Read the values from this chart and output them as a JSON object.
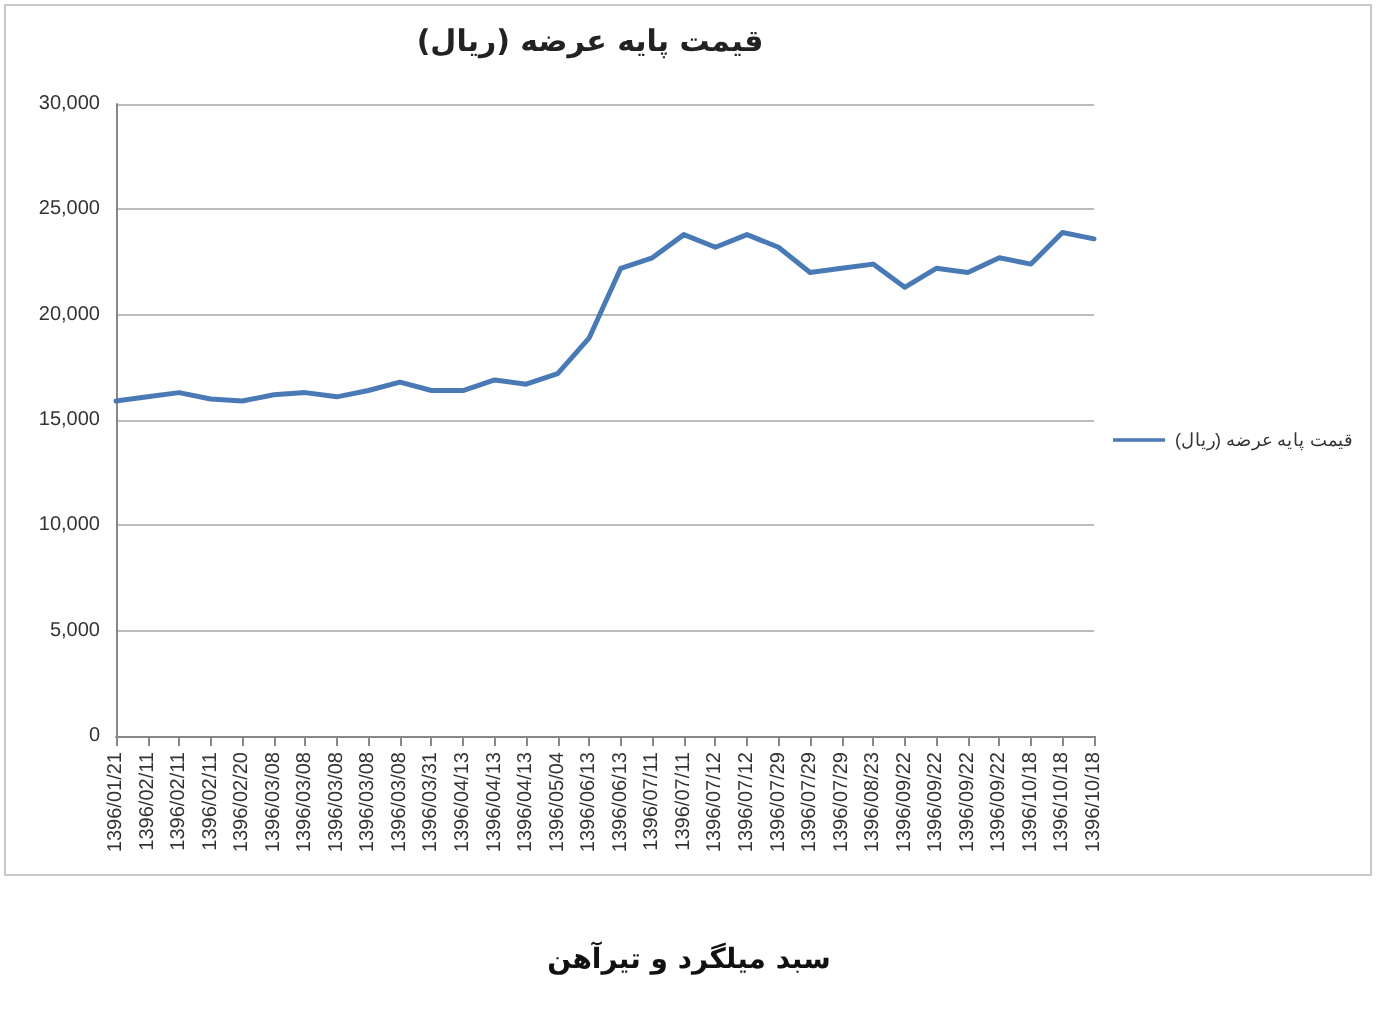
{
  "chart_data": {
    "type": "line",
    "title": "قیمت پایه عرضه (ریال)",
    "categories": [
      "1396/01/21",
      "1396/02/11",
      "1396/02/11",
      "1396/02/11",
      "1396/02/20",
      "1396/03/08",
      "1396/03/08",
      "1396/03/08",
      "1396/03/08",
      "1396/03/08",
      "1396/03/31",
      "1396/04/13",
      "1396/04/13",
      "1396/04/13",
      "1396/05/04",
      "1396/06/13",
      "1396/06/13",
      "1396/07/11",
      "1396/07/11",
      "1396/07/12",
      "1396/07/12",
      "1396/07/29",
      "1396/07/29",
      "1396/07/29",
      "1396/08/23",
      "1396/09/22",
      "1396/09/22",
      "1396/09/22",
      "1396/09/22",
      "1396/10/18",
      "1396/10/18",
      "1396/10/18"
    ],
    "series": [
      {
        "name": "قیمت پایه عرضه (ریال)",
        "color": "#4a7ab5",
        "values": [
          15900,
          16100,
          16300,
          16000,
          15900,
          16200,
          16300,
          16100,
          16400,
          16800,
          16400,
          16400,
          16900,
          16700,
          17200,
          18900,
          22200,
          22700,
          23800,
          23200,
          23800,
          23200,
          22000,
          22200,
          22400,
          21300,
          22200,
          22000,
          22700,
          22400,
          23900,
          23600
        ]
      }
    ],
    "ylim": [
      0,
      30000
    ],
    "yticks": [
      0,
      {
        "value": 5000,
        "label": "5,000"
      },
      {
        "value": 10000,
        "label": "10,000"
      },
      {
        "value": 15000,
        "label": "15,000"
      },
      {
        "value": 20000,
        "label": "20,000"
      },
      {
        "value": 25000,
        "label": "25,000"
      },
      {
        "value": 30000,
        "label": "30,000"
      }
    ],
    "grid": "y",
    "legend": "right",
    "marker": "none",
    "line_style": "solid",
    "annotations": [
      "سبد میلگرد و تیرآهن"
    ]
  }
}
